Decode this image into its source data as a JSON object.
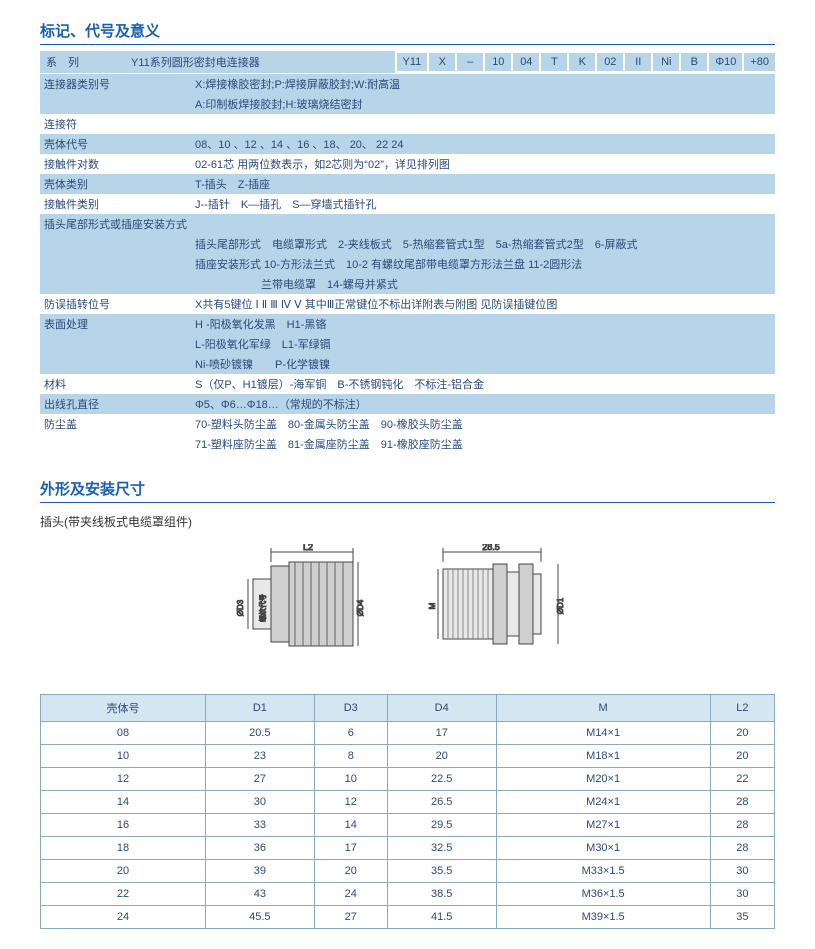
{
  "titles": {
    "marking": "标记、代号及意义",
    "dims": "外形及安装尺寸",
    "sub": "插头(带夹线板式电缆罩组件)"
  },
  "codeStrip": {
    "label": "系　列",
    "desc": "Y11系列圆形密封电连接器",
    "cells": [
      "Y11",
      "X",
      "–",
      "10",
      "04",
      "T",
      "K",
      "02",
      "II",
      "Ni",
      "B",
      "Φ10",
      "+80"
    ]
  },
  "markingRows": [
    {
      "alt": true,
      "label": "连接器类别号",
      "text": "X:焊接橡胶密封;P:焊接屏蔽胶封;W:耐高温"
    },
    {
      "alt": true,
      "label": "",
      "text": "A:印制板焊接胶封;H:玻璃烧结密封"
    },
    {
      "alt": false,
      "label": "连接符",
      "text": ""
    },
    {
      "alt": true,
      "label": "壳体代号",
      "text": "08、10 、12 、14 、16 、18、 20、 22 24"
    },
    {
      "alt": false,
      "label": "接触件对数",
      "text": "02-61芯 用两位数表示，如2芯则为“02”，详见排列图"
    },
    {
      "alt": true,
      "label": "壳体类别",
      "text": "T-插头　Z-插座"
    },
    {
      "alt": false,
      "label": "接触件类别",
      "text": "J--插针　K—插孔　S—穿墙式插针孔"
    },
    {
      "alt": true,
      "label": "插头尾部形式或插座安装方式",
      "text": ""
    },
    {
      "alt": true,
      "label": "",
      "text": "插头尾部形式　电缆罩形式　2-夹线板式　5-热缩套管式1型　5a-热缩套管式2型　6-屏蔽式"
    },
    {
      "alt": true,
      "label": "",
      "text": "插座安装形式 10-方形法兰式　10-2 有螺纹尾部带电缆罩方形法兰盘 11-2圆形法"
    },
    {
      "alt": true,
      "label": "",
      "text": "　　　　　　兰带电缆罩　14-螺母并紧式"
    },
    {
      "alt": false,
      "label": "防误插转位号",
      "text": "X共有5键位 Ⅰ Ⅱ Ⅲ Ⅳ Ⅴ 其中Ⅲ正常键位不标出详附表与附图 见防误插键位图"
    },
    {
      "alt": true,
      "label": "表面处理",
      "text": "H -阳极氧化发黑　H1-黑铬"
    },
    {
      "alt": true,
      "label": "",
      "text": "L-阳极氧化军绿　L1-军绿镉"
    },
    {
      "alt": true,
      "label": "",
      "text": "Ni-喷砂镀镍　　P-化学镀镍"
    },
    {
      "alt": false,
      "label": "材料",
      "text": "S（仅P、H1镀层）-海军铜　B-不锈钢钝化　不标注-铝合金"
    },
    {
      "alt": true,
      "label": "出线孔直径",
      "text": "Φ5、Φ6…Φ18…（常规的不标注）"
    },
    {
      "alt": false,
      "label": "防尘盖",
      "text": "70-塑料头防尘盖　80-金属头防尘盖　90-橡胶头防尘盖"
    },
    {
      "alt": false,
      "label": "",
      "text": "71-塑料座防尘盖　81-金属座防尘盖　91-橡胶座防尘盖"
    }
  ],
  "drawings": {
    "left": {
      "topDim": "L2",
      "labels": [
        "ØD3",
        "螺纹代号",
        "ØD4"
      ]
    },
    "right": {
      "topDim": "28.5",
      "labels": [
        "M",
        "ØD1"
      ]
    },
    "colors": {
      "stroke": "#444444",
      "fill": "#cfcfcf",
      "light": "#e8e8e8"
    }
  },
  "dimTable": {
    "headers": [
      "壳体号",
      "D1",
      "D3",
      "D4",
      "M",
      "L2"
    ],
    "rows": [
      [
        "08",
        "20.5",
        "6",
        "17",
        "M14×1",
        "20"
      ],
      [
        "10",
        "23",
        "8",
        "20",
        "M18×1",
        "20"
      ],
      [
        "12",
        "27",
        "10",
        "22.5",
        "M20×1",
        "22"
      ],
      [
        "14",
        "30",
        "12",
        "26.5",
        "M24×1",
        "28"
      ],
      [
        "16",
        "33",
        "14",
        "29.5",
        "M27×1",
        "28"
      ],
      [
        "18",
        "36",
        "17",
        "32.5",
        "M30×1",
        "28"
      ],
      [
        "20",
        "39",
        "20",
        "35.5",
        "M33×1.5",
        "30"
      ],
      [
        "22",
        "43",
        "24",
        "38.5",
        "M36×1.5",
        "30"
      ],
      [
        "24",
        "45.5",
        "27",
        "41.5",
        "M39×1.5",
        "35"
      ]
    ]
  }
}
